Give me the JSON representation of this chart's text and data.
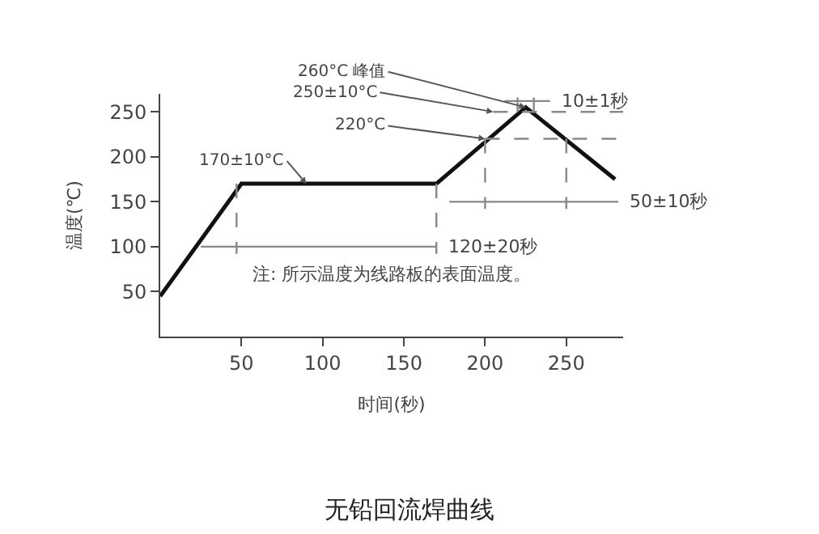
{
  "chart_data": {
    "type": "line",
    "title": "无铅回流焊曲线",
    "xlabel": "时间(秒)",
    "ylabel": "温度(℃)",
    "xlim": [
      0,
      285
    ],
    "ylim": [
      0,
      270
    ],
    "xticks": [
      50,
      100,
      150,
      200,
      250
    ],
    "yticks": [
      50,
      100,
      150,
      200,
      250
    ],
    "marker": "none",
    "series": [
      {
        "color": "#111111",
        "x": [
          0,
          50,
          170,
          225,
          280
        ],
        "values": [
          45,
          170,
          170,
          255,
          175
        ],
        "line_style": "solid"
      },
      {
        "color": "#888888",
        "x": [
          25,
          170
        ],
        "values": [
          100,
          100
        ],
        "line_style": "solid"
      },
      {
        "color": "#888888",
        "x": [
          178,
          282
        ],
        "values": [
          150,
          150
        ],
        "line_style": "solid"
      },
      {
        "color": "#888888",
        "x": [
          212,
          240
        ],
        "values": [
          262,
          262
        ],
        "line_style": "solid"
      },
      {
        "color": "#888888",
        "x": [
          47,
          47
        ],
        "values": [
          170,
          92
        ],
        "line_style": "dashed"
      },
      {
        "color": "#888888",
        "x": [
          170,
          170
        ],
        "values": [
          170,
          92
        ],
        "line_style": "dashed"
      },
      {
        "color": "#888888",
        "x": [
          200,
          200
        ],
        "values": [
          220,
          142
        ],
        "line_style": "dashed"
      },
      {
        "color": "#888888",
        "x": [
          250,
          250
        ],
        "values": [
          220,
          142
        ],
        "line_style": "dashed"
      },
      {
        "color": "#888888",
        "x": [
          220,
          220
        ],
        "values": [
          266,
          244
        ],
        "line_style": "dashed"
      },
      {
        "color": "#888888",
        "x": [
          230,
          230
        ],
        "values": [
          266,
          244
        ],
        "line_style": "dashed"
      },
      {
        "color": "#888888",
        "x": [
          205,
          285
        ],
        "values": [
          250,
          250
        ],
        "line_style": "dashed"
      },
      {
        "color": "#888888",
        "x": [
          200,
          285
        ],
        "values": [
          220,
          220
        ],
        "line_style": "dashed"
      }
    ],
    "annotations": [
      {
        "text": "260°C 峰值",
        "x": 225,
        "y": 255
      },
      {
        "text": "250±10°C",
        "x": 205,
        "y": 250
      },
      {
        "text": "220°C",
        "x": 200,
        "y": 220
      },
      {
        "text": "170±10°C",
        "x": 90,
        "y": 170
      },
      {
        "text": "120±20秒",
        "x": 170,
        "y": 100
      },
      {
        "text": "50±10秒",
        "x": 282,
        "y": 150
      },
      {
        "text": "10±1秒",
        "x": 240,
        "y": 262
      },
      "注: 所示温度为线路板的表面温度。"
    ]
  }
}
